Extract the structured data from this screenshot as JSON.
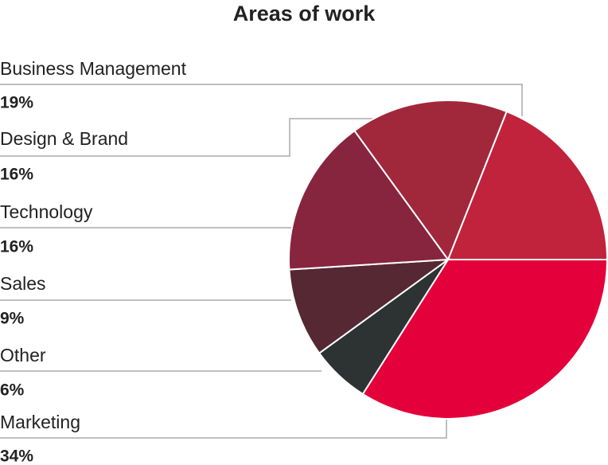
{
  "chart_data": {
    "type": "pie",
    "title": "Areas of work",
    "categories": [
      "Business Management",
      "Design & Brand",
      "Technology",
      "Sales",
      "Other",
      "Marketing"
    ],
    "values": [
      19,
      16,
      16,
      9,
      6,
      34
    ],
    "value_labels": [
      "19%",
      "16%",
      "16%",
      "9%",
      "6%",
      "34%"
    ],
    "colors": [
      "#c0233b",
      "#a1283b",
      "#87253e",
      "#552833",
      "#2d3232",
      "#e4003a"
    ]
  }
}
